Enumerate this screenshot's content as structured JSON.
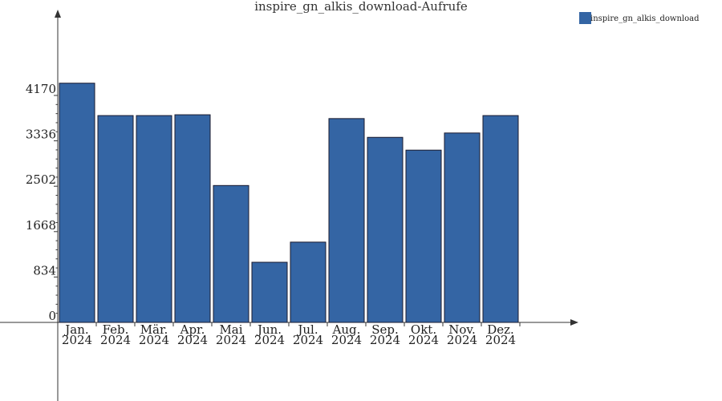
{
  "chart_data": {
    "type": "bar",
    "title": "inspire_gn_alkis_download-Aufrufe",
    "xlabel": "",
    "ylabel": "",
    "categories": [
      [
        "Jan.",
        "2024"
      ],
      [
        "Feb.",
        "2024"
      ],
      [
        "Mär.",
        "2024"
      ],
      [
        "Apr.",
        "2024"
      ],
      [
        "Mai",
        "2024"
      ],
      [
        "Jun.",
        "2024"
      ],
      [
        "Jul.",
        "2024"
      ],
      [
        "Aug.",
        "2024"
      ],
      [
        "Sep.",
        "2024"
      ],
      [
        "Okt.",
        "2024"
      ],
      [
        "Nov.",
        "2024"
      ],
      [
        "Dez.",
        "2024"
      ]
    ],
    "series": [
      {
        "name": "inspire_gn_alkis_download",
        "color": "#3465a4",
        "values": [
          4395,
          3800,
          3800,
          3815,
          2515,
          1105,
          1475,
          3745,
          3400,
          3165,
          3480,
          3800
        ]
      }
    ],
    "yticks": [
      0,
      834,
      1668,
      2502,
      3336,
      4170
    ],
    "ylim": [
      0,
      5525
    ],
    "grid": false,
    "legend_position": "top-right"
  }
}
